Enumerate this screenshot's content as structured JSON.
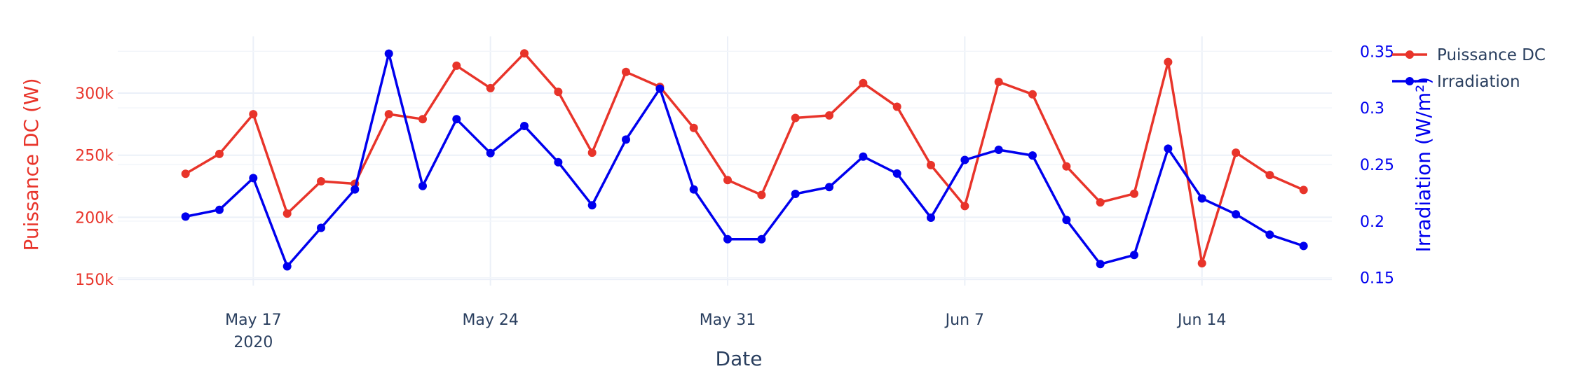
{
  "chart_data": {
    "type": "line",
    "xlabel": "Date",
    "x": [
      "2020-05-15",
      "2020-05-16",
      "2020-05-17",
      "2020-05-18",
      "2020-05-19",
      "2020-05-20",
      "2020-05-21",
      "2020-05-22",
      "2020-05-23",
      "2020-05-24",
      "2020-05-25",
      "2020-05-26",
      "2020-05-27",
      "2020-05-28",
      "2020-05-29",
      "2020-05-30",
      "2020-05-31",
      "2020-06-01",
      "2020-06-02",
      "2020-06-03",
      "2020-06-04",
      "2020-06-05",
      "2020-06-06",
      "2020-06-07",
      "2020-06-08",
      "2020-06-09",
      "2020-06-10",
      "2020-06-11",
      "2020-06-12",
      "2020-06-13",
      "2020-06-14",
      "2020-06-15",
      "2020-06-16",
      "2020-06-17"
    ],
    "xlim": [
      "2020-05-13",
      "2020-06-17 20:00"
    ],
    "x_ticks": [
      {
        "date": "2020-05-17",
        "label": "May 17",
        "sublabel": "2020"
      },
      {
        "date": "2020-05-24",
        "label": "May 24",
        "sublabel": ""
      },
      {
        "date": "2020-05-31",
        "label": "May 31",
        "sublabel": ""
      },
      {
        "date": "2020-06-07",
        "label": "Jun 7",
        "sublabel": ""
      },
      {
        "date": "2020-06-14",
        "label": "Jun 14",
        "sublabel": ""
      }
    ],
    "y_left": {
      "label": "Puissance DC (W)",
      "ylim": [
        145000,
        340000
      ],
      "ticks": [
        {
          "value": 150000,
          "label": "150k"
        },
        {
          "value": 200000,
          "label": "200k"
        },
        {
          "value": 250000,
          "label": "250k"
        },
        {
          "value": 300000,
          "label": "300k"
        }
      ]
    },
    "y_right": {
      "label": "Irradiation (W/m²)",
      "ylim": [
        0.143,
        0.357
      ],
      "ticks": [
        {
          "value": 0.15,
          "label": "0.15"
        },
        {
          "value": 0.2,
          "label": "0.2"
        },
        {
          "value": 0.25,
          "label": "0.25"
        },
        {
          "value": 0.3,
          "label": "0.3"
        },
        {
          "value": 0.35,
          "label": "0.35"
        }
      ]
    },
    "series": [
      {
        "name": "Puissance DC",
        "axis": "left",
        "color": "#e8342a",
        "values": [
          235000,
          251000,
          283000,
          203000,
          229000,
          227000,
          283000,
          279000,
          322000,
          304000,
          332000,
          301000,
          252000,
          317000,
          305000,
          272000,
          230000,
          218000,
          280000,
          282000,
          308000,
          289000,
          242000,
          209000,
          309000,
          299000,
          241000,
          212000,
          219000,
          325000,
          163000,
          252000,
          234000,
          222000
        ]
      },
      {
        "name": "Irradiation",
        "axis": "right",
        "color": "#0000ee",
        "values": [
          0.204,
          0.21,
          0.238,
          0.16,
          0.194,
          0.228,
          0.348,
          0.231,
          0.29,
          0.26,
          0.284,
          0.252,
          0.214,
          0.272,
          0.317,
          0.228,
          0.184,
          0.184,
          0.224,
          0.23,
          0.257,
          0.242,
          0.203,
          0.254,
          0.263,
          0.258,
          0.201,
          0.162,
          0.17,
          0.264,
          0.22,
          0.206,
          0.188,
          0.178
        ]
      }
    ],
    "grid": true,
    "legend_position": "top-right"
  }
}
